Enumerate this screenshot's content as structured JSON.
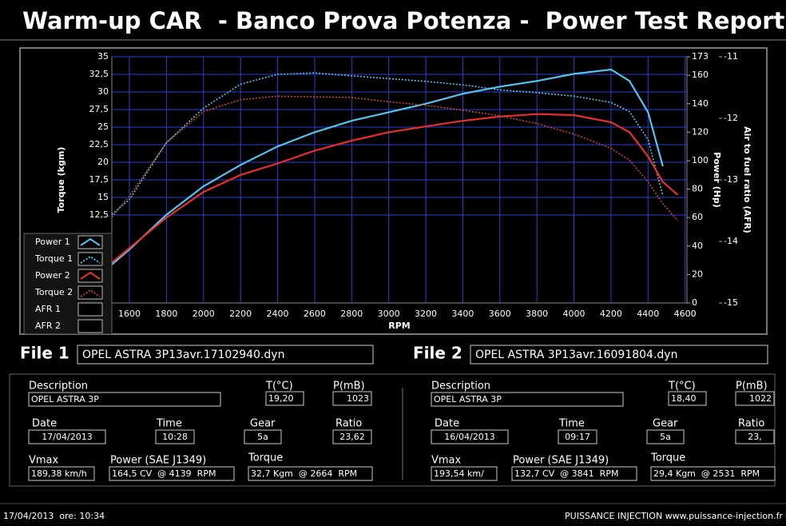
{
  "header": {
    "title": "Warm-up CAR  - Banco Prova Potenza -  Power Test Report"
  },
  "chart_data": {
    "type": "line",
    "x_label": "RPM",
    "y_label": "Torque (kgm)",
    "y2_label": "Power (Hp)",
    "y3_label": "Air to fuel ratio (AFR)",
    "x": [
      1505,
      1600,
      1800,
      2000,
      2200,
      2400,
      2600,
      2800,
      3000,
      3200,
      3400,
      3600,
      3800,
      4000,
      4200,
      4300,
      4400,
      4480,
      4560
    ],
    "series": [
      {
        "name": "Power 1",
        "color": "#55c3ef",
        "axis": "y2",
        "style": "solid",
        "values": [
          27,
          37.5,
          62,
          82,
          97,
          110,
          120,
          128,
          134,
          140,
          147,
          152,
          156,
          161,
          164,
          156,
          134,
          96,
          null
        ]
      },
      {
        "name": "Torque 1",
        "color": "#55c3ef",
        "axis": "y",
        "style": "dotted",
        "values": [
          12.6,
          14.7,
          22.8,
          27.7,
          31.1,
          32.5,
          32.7,
          32.3,
          31.9,
          31.5,
          31,
          30.3,
          29.9,
          29.4,
          28.5,
          27.2,
          23.2,
          15.2,
          null
        ]
      },
      {
        "name": "Power 2",
        "color": "#e8302a",
        "axis": "y2",
        "style": "solid",
        "values": [
          28.5,
          38.6,
          60,
          78,
          90,
          98,
          107,
          114,
          120,
          124,
          128,
          131,
          132.7,
          132,
          127,
          120,
          103,
          85,
          76
        ]
      },
      {
        "name": "Torque 2",
        "color": "#c8482e",
        "axis": "y",
        "style": "dotted",
        "values": [
          12.2,
          15.2,
          22.8,
          27.2,
          28.9,
          29.4,
          29.3,
          29.2,
          28.6,
          28.1,
          27.4,
          26.6,
          25.5,
          24,
          22,
          20.3,
          17.2,
          14.1,
          11.7
        ]
      },
      {
        "name": "AFR 1",
        "color": "#ffffff",
        "axis": "y3",
        "style": "solid",
        "values": [
          null,
          null,
          null,
          null,
          null,
          null,
          null,
          null,
          null,
          null,
          null,
          null,
          null,
          null,
          null,
          null,
          null,
          null,
          null
        ]
      },
      {
        "name": "AFR 2",
        "color": "#ffffff",
        "axis": "y3",
        "style": "solid",
        "values": [
          null,
          null,
          null,
          null,
          null,
          null,
          null,
          null,
          null,
          null,
          null,
          null,
          null,
          null,
          null,
          null,
          null,
          null,
          null
        ]
      }
    ],
    "xlim": [
      1505,
      4610
    ],
    "xticks": [
      1600,
      1800,
      2000,
      2200,
      2400,
      2600,
      2800,
      3000,
      3200,
      3400,
      3600,
      3800,
      4000,
      4200,
      4400,
      4600
    ],
    "ylim": [
      0,
      35
    ],
    "yticks": [
      {
        "value": 12.5,
        "label": "12,5"
      },
      15,
      {
        "value": 17.5,
        "label": "17,5"
      },
      20,
      {
        "value": 22.5,
        "label": "22,5"
      },
      25,
      {
        "value": 27.5,
        "label": "27,5"
      },
      30,
      {
        "value": 32.5,
        "label": "32,5"
      },
      35
    ],
    "y2lim": [
      0,
      173
    ],
    "y2ticks": [
      0,
      20,
      40,
      60,
      80,
      100,
      120,
      140,
      160,
      173
    ],
    "y3lim": [
      -15,
      -11
    ],
    "y3ticks": [
      -15,
      -14,
      -13,
      -12,
      -11
    ],
    "grid": true,
    "grid_color": "#2f3fd0",
    "legend": "lower-left"
  },
  "files": [
    {
      "label": "File 1",
      "name": "OPEL ASTRA 3P13avr.17102940.dyn",
      "description_label": "Description",
      "description": "OPEL ASTRA 3P",
      "temp_label": "T(°C)",
      "temp": "19,20",
      "pressure_label": "P(mB)",
      "pressure": "1023",
      "date_label": "Date",
      "date": "17/04/2013",
      "time_label": "Time",
      "time": "10:28",
      "gear_label": "Gear",
      "gear": "5a",
      "ratio_label": "Ratio",
      "ratio": "23,62",
      "vmax_label": "Vmax",
      "vmax": "189,38 km/h",
      "power_label": "Power (SAE J1349)",
      "power": "164,5 CV  @ 4139  RPM",
      "torque_label": "Torque",
      "torque": "32,7 Kgm  @ 2664  RPM"
    },
    {
      "label": "File 2",
      "name": "OPEL ASTRA 3P13avr.16091804.dyn",
      "description_label": "Description",
      "description": "OPEL ASTRA 3P",
      "temp_label": "T(°C)",
      "temp": "18,40",
      "pressure_label": "P(mB)",
      "pressure": "1022",
      "date_label": "Date",
      "date": "16/04/2013",
      "time_label": "Time",
      "time": "09:17",
      "gear_label": "Gear",
      "gear": "5a",
      "ratio_label": "Ratio",
      "ratio": "23,",
      "vmax_label": "Vmax",
      "vmax": "193,54 km/",
      "power_label": "Power (SAE J1349)",
      "power": "132,7 CV  @ 3841  RPM",
      "torque_label": "Torque",
      "torque": "29,4 Kgm  @ 2531  RPM"
    }
  ],
  "footer": {
    "left": "17/04/2013  ore: 10:34",
    "right": "PUISSANCE INJECTION www.puissance-injection.fr"
  }
}
